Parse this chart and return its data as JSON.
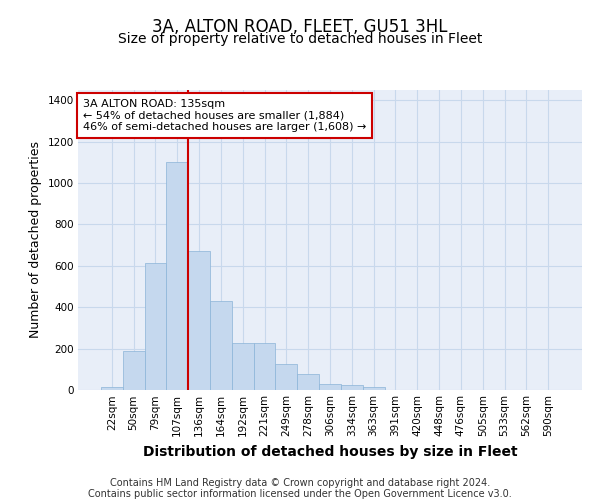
{
  "title": "3A, ALTON ROAD, FLEET, GU51 3HL",
  "subtitle": "Size of property relative to detached houses in Fleet",
  "xlabel": "Distribution of detached houses by size in Fleet",
  "ylabel": "Number of detached properties",
  "footer1": "Contains HM Land Registry data © Crown copyright and database right 2024.",
  "footer2": "Contains public sector information licensed under the Open Government Licence v3.0.",
  "categories": [
    "22sqm",
    "50sqm",
    "79sqm",
    "107sqm",
    "136sqm",
    "164sqm",
    "192sqm",
    "221sqm",
    "249sqm",
    "278sqm",
    "306sqm",
    "334sqm",
    "363sqm",
    "391sqm",
    "420sqm",
    "448sqm",
    "476sqm",
    "505sqm",
    "533sqm",
    "562sqm",
    "590sqm"
  ],
  "values": [
    15,
    190,
    615,
    1100,
    670,
    430,
    225,
    225,
    125,
    75,
    30,
    25,
    15,
    0,
    0,
    0,
    0,
    0,
    0,
    0,
    0
  ],
  "bar_color": "#c5d8ee",
  "bar_edge_color": "#8ab4d8",
  "bar_width": 1.0,
  "red_line_x": 3.5,
  "annotation_line1": "3A ALTON ROAD: 135sqm",
  "annotation_line2": "← 54% of detached houses are smaller (1,884)",
  "annotation_line3": "46% of semi-detached houses are larger (1,608) →",
  "annotation_box_color": "#ffffff",
  "annotation_box_edge": "#cc0000",
  "ylim": [
    0,
    1450
  ],
  "yticks": [
    0,
    200,
    400,
    600,
    800,
    1000,
    1200,
    1400
  ],
  "grid_color": "#c8d8ec",
  "plot_bg_color": "#e8eef8",
  "title_fontsize": 12,
  "subtitle_fontsize": 10,
  "xlabel_fontsize": 10,
  "ylabel_fontsize": 9,
  "tick_fontsize": 7.5,
  "annotation_fontsize": 8,
  "footer_fontsize": 7
}
